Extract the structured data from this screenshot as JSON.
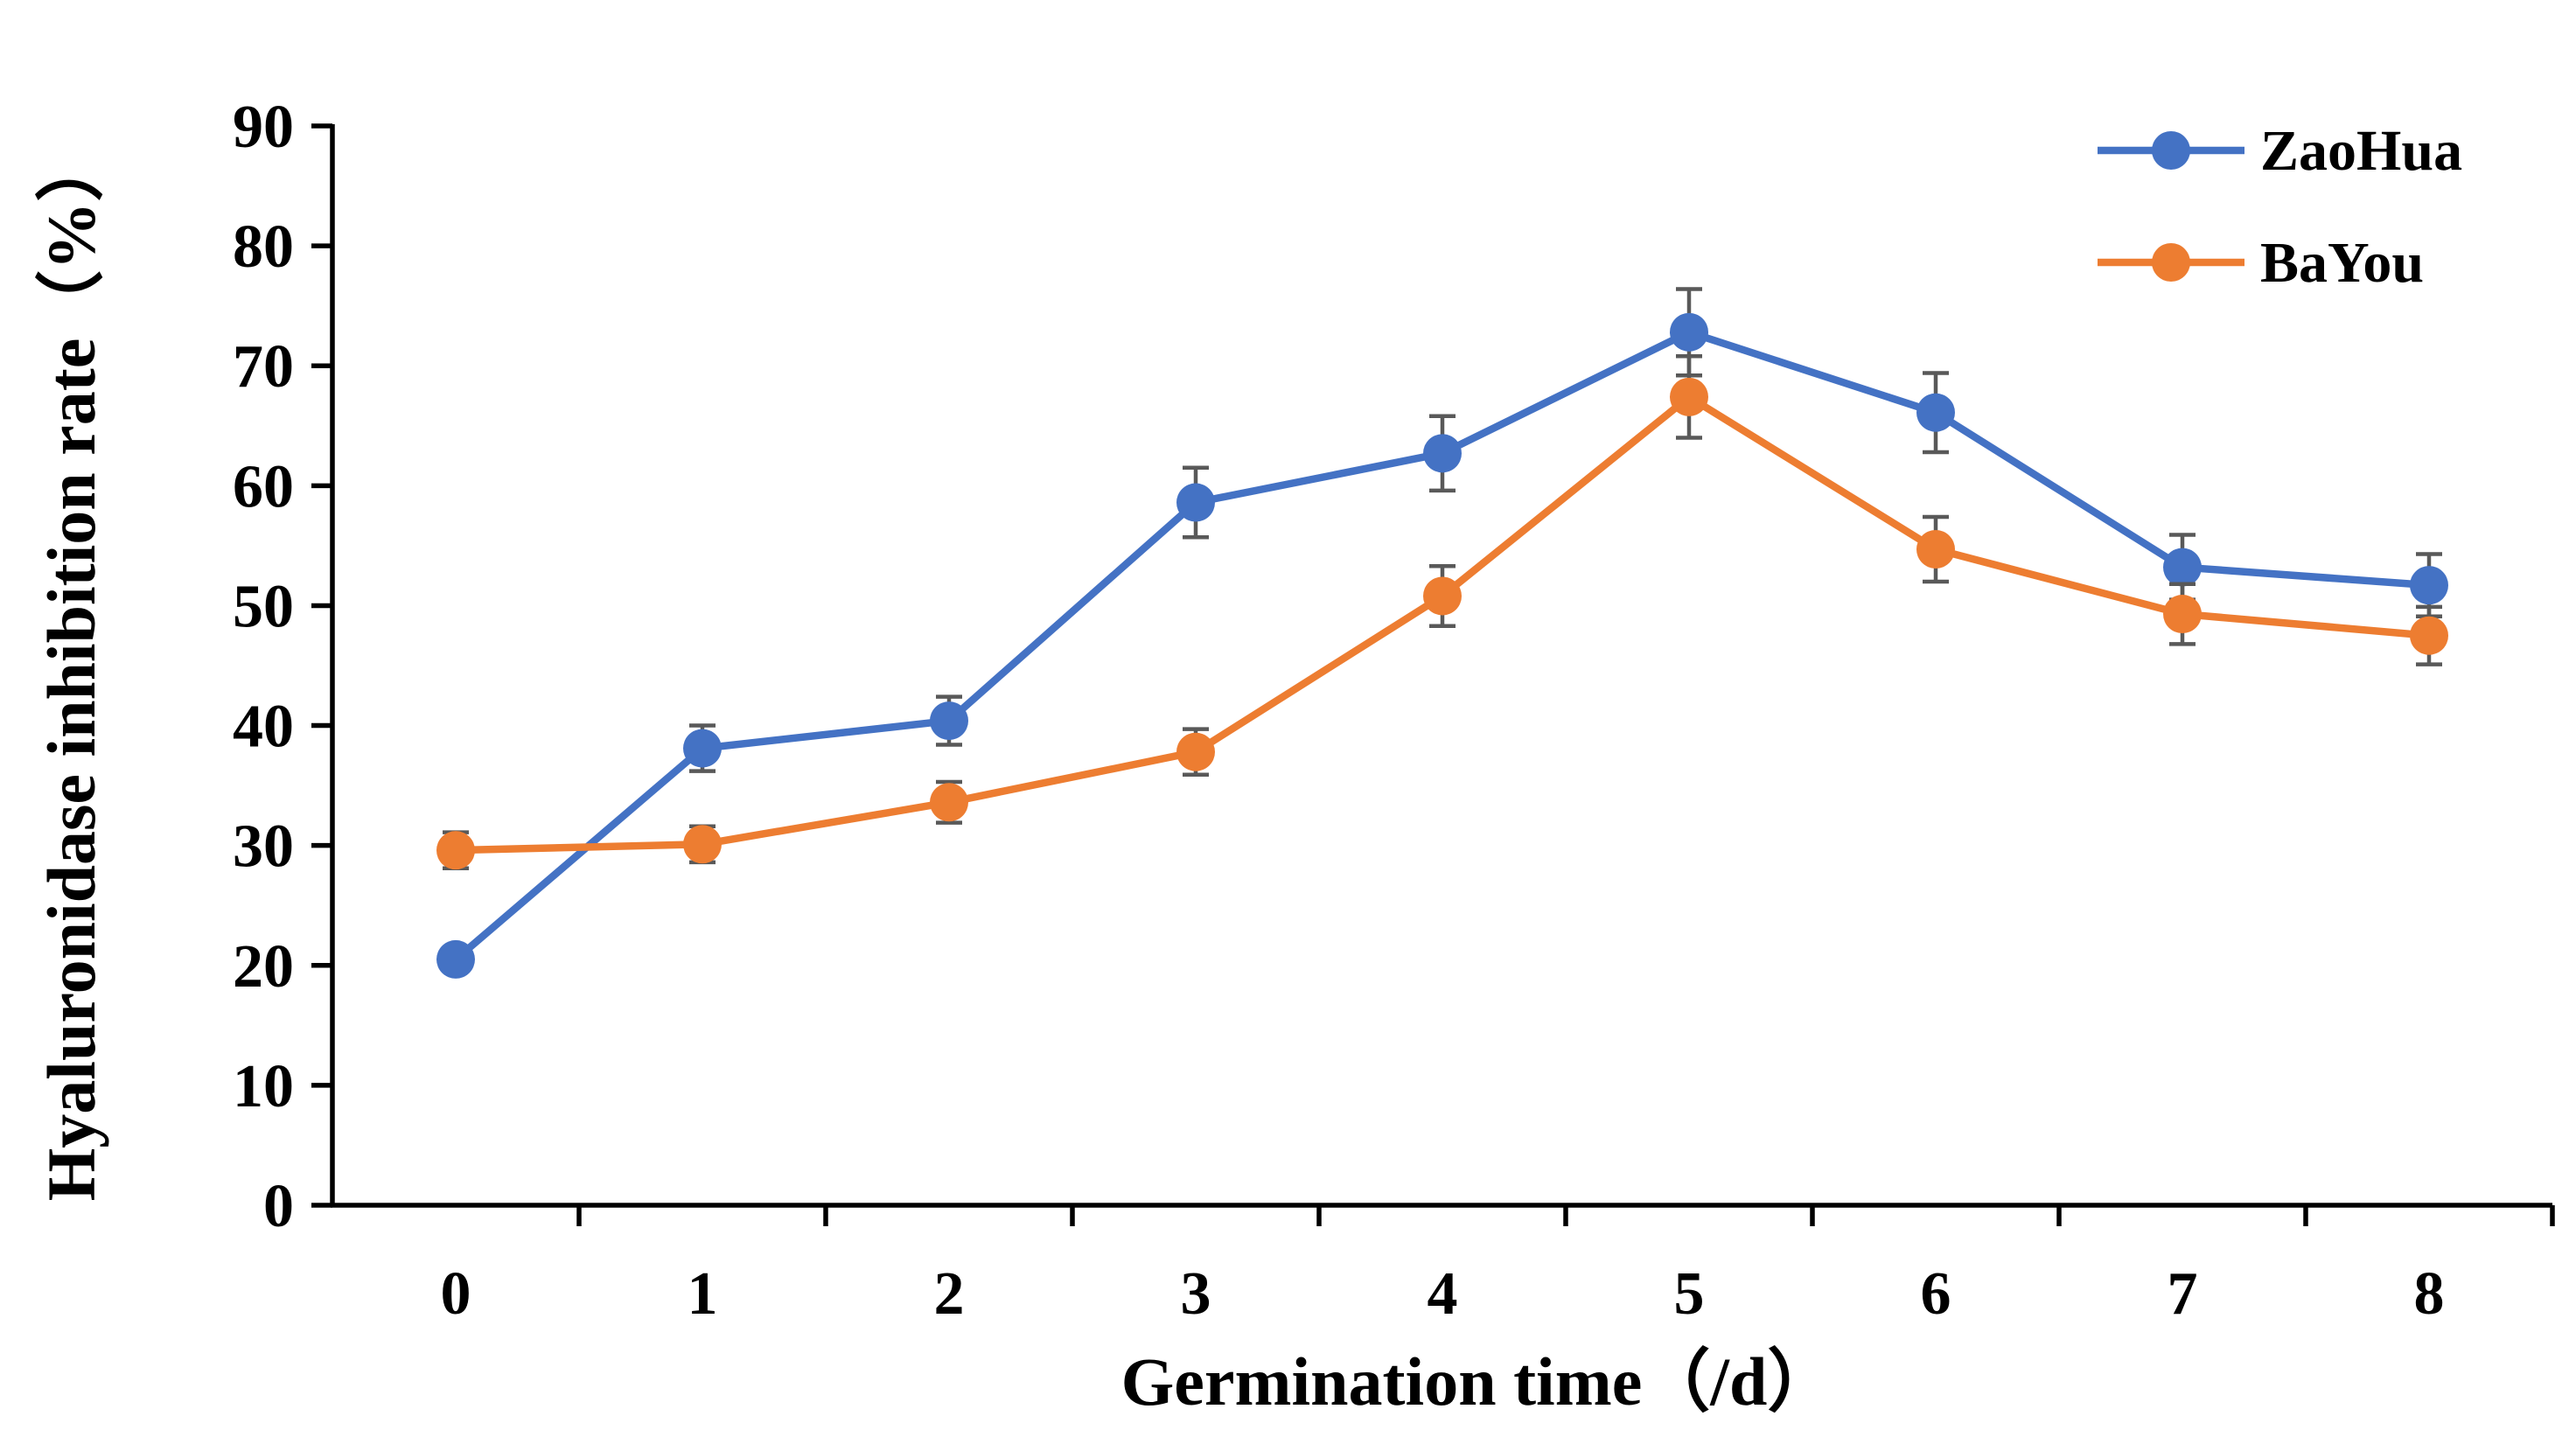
{
  "chart_data": {
    "type": "line",
    "title": "",
    "xlabel": "Germination time（/d）",
    "ylabel": "Hyaluronidase inhibition rate（%）",
    "categories": [
      "0",
      "1",
      "2",
      "3",
      "4",
      "5",
      "6",
      "7",
      "8"
    ],
    "ylim": [
      0,
      90
    ],
    "yticks": [
      "0",
      "10",
      "20",
      "30",
      "40",
      "50",
      "60",
      "70",
      "80",
      "90"
    ],
    "grid": false,
    "legend_position": "top-right",
    "series": [
      {
        "name": "ZaoHua",
        "color": "#4472C4",
        "values": [
          20.5,
          38.1,
          40.4,
          58.6,
          62.7,
          72.8,
          66.1,
          53.2,
          51.7
        ],
        "errors": [
          0.0,
          1.9,
          2.0,
          2.9,
          3.1,
          3.6,
          3.3,
          2.7,
          2.6
        ]
      },
      {
        "name": "BaYou",
        "color": "#ED7D31",
        "values": [
          29.6,
          30.1,
          33.6,
          37.8,
          50.8,
          67.4,
          54.7,
          49.3,
          47.5
        ],
        "errors": [
          1.5,
          1.5,
          1.7,
          1.9,
          2.5,
          3.4,
          2.7,
          2.5,
          2.4
        ]
      }
    ]
  }
}
